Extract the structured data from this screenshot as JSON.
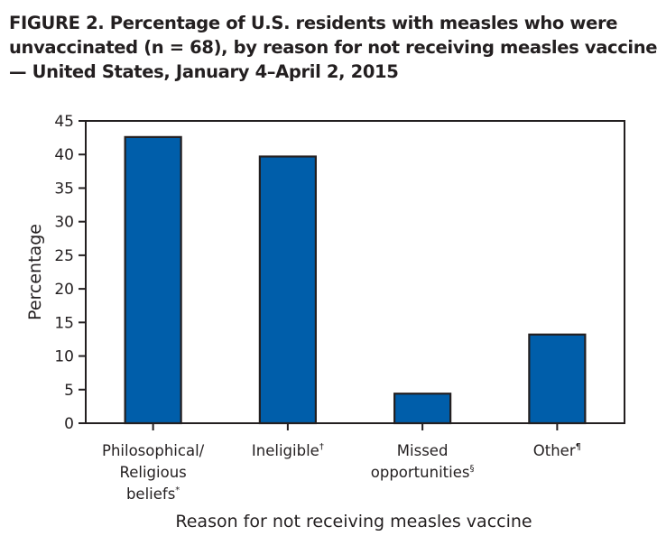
{
  "figure": {
    "title_lines": [
      "FIGURE 2. Percentage of U.S. residents with measles who were",
      "unvaccinated (n = 68), by reason for not receiving measles vaccine",
      "— United States, January 4–April 2, 2015"
    ]
  },
  "chart_data": {
    "type": "bar",
    "title": "FIGURE 2. Percentage of U.S. residents with measles who were unvaccinated (n = 68), by reason for not receiving measles vaccine — United States, January 4–April 2, 2015",
    "categories": [
      {
        "lines": [
          "Philosophical/",
          "Religious",
          "beliefs"
        ],
        "mark": "*"
      },
      {
        "lines": [
          "Ineligible"
        ],
        "mark": "†"
      },
      {
        "lines": [
          "Missed",
          "opportunities"
        ],
        "mark": "§"
      },
      {
        "lines": [
          "Other"
        ],
        "mark": "¶"
      }
    ],
    "values": [
      42.6,
      39.7,
      4.4,
      13.2
    ],
    "xlabel": "Reason for not receiving measles vaccine",
    "ylabel": "Percentage",
    "ylim": [
      0,
      45
    ],
    "yticks": [
      0,
      5,
      10,
      15,
      20,
      25,
      30,
      35,
      40,
      45
    ],
    "grid": false,
    "legend": "none",
    "colors": {
      "bar_fill": "#005eaa",
      "bar_stroke": "#231f20",
      "axis": "#231f20"
    }
  }
}
